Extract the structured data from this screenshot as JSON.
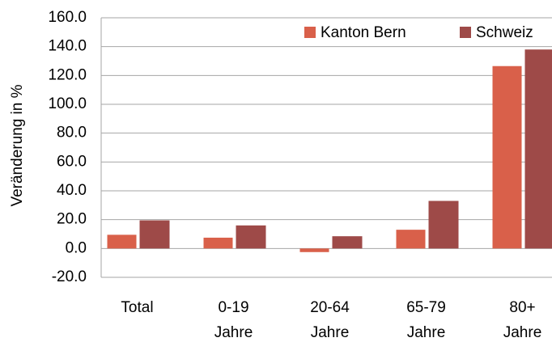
{
  "chart_data": {
    "type": "bar",
    "y_label": "Veränderung in %",
    "categories": [
      "Total",
      "0-19 Jahre",
      "20-64 Jahre",
      "65-79 Jahre",
      "80+ Jahre"
    ],
    "series": [
      {
        "name": "Kanton Bern",
        "color": "#d9604a",
        "values": [
          9.5,
          7.5,
          -2.5,
          13,
          126.5
        ]
      },
      {
        "name": "Schweiz",
        "color": "#9e4a48",
        "values": [
          19.5,
          16,
          8.5,
          33,
          138
        ]
      }
    ],
    "ylim": [
      -20,
      160
    ],
    "yticks": [
      {
        "value": -20,
        "label": "-20.0"
      },
      {
        "value": 0,
        "label": "0.0"
      },
      {
        "value": 20,
        "label": "20.0"
      },
      {
        "value": 40,
        "label": "40.0"
      },
      {
        "value": 60,
        "label": "60.0"
      },
      {
        "value": 80,
        "label": "80.0"
      },
      {
        "value": 100,
        "label": "100.0"
      },
      {
        "value": 120,
        "label": "120.0"
      },
      {
        "value": 140,
        "label": "140.0"
      },
      {
        "value": 160,
        "label": "160.0"
      }
    ],
    "grid": true,
    "legend": "top-right"
  }
}
